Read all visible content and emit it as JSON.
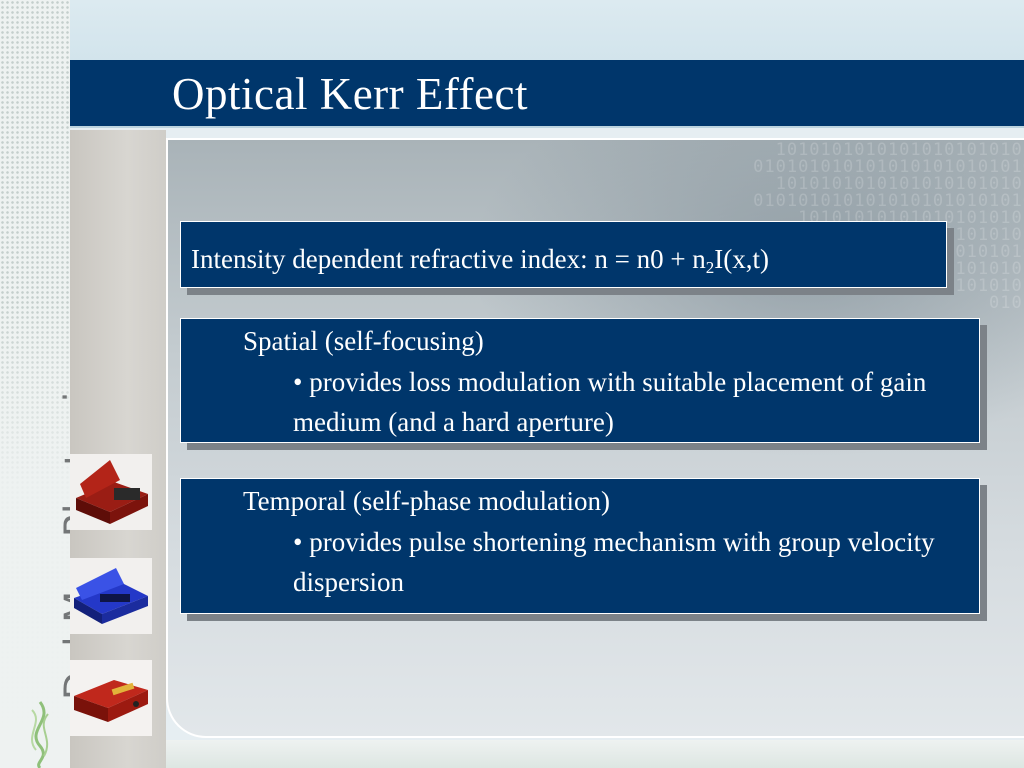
{
  "slide": {
    "title": "Optical Kerr Effect",
    "brand": "Del Mar Photonics"
  },
  "intensity_box": {
    "prefix": "Intensity dependent refractive index: n = n0 + n",
    "subscript": "2",
    "suffix": "I(x,t)"
  },
  "spatial_box": {
    "heading": "Spatial (self-focusing)",
    "bullet": "• provides loss modulation with suitable placement of gain medium (and a hard aperture)"
  },
  "temporal_box": {
    "heading": "Temporal (self-phase modulation)",
    "bullet": "• provides pulse shortening mechanism with group velocity dispersion"
  },
  "colors": {
    "title_bar": "#00366b",
    "box_fill": "#00366b",
    "text": "#ffffff",
    "brand_text": "#737677"
  },
  "icons": [
    "laser-housing-red-icon",
    "laser-housing-blue-icon",
    "laser-device-red-icon",
    "brand-swirl-icon"
  ]
}
